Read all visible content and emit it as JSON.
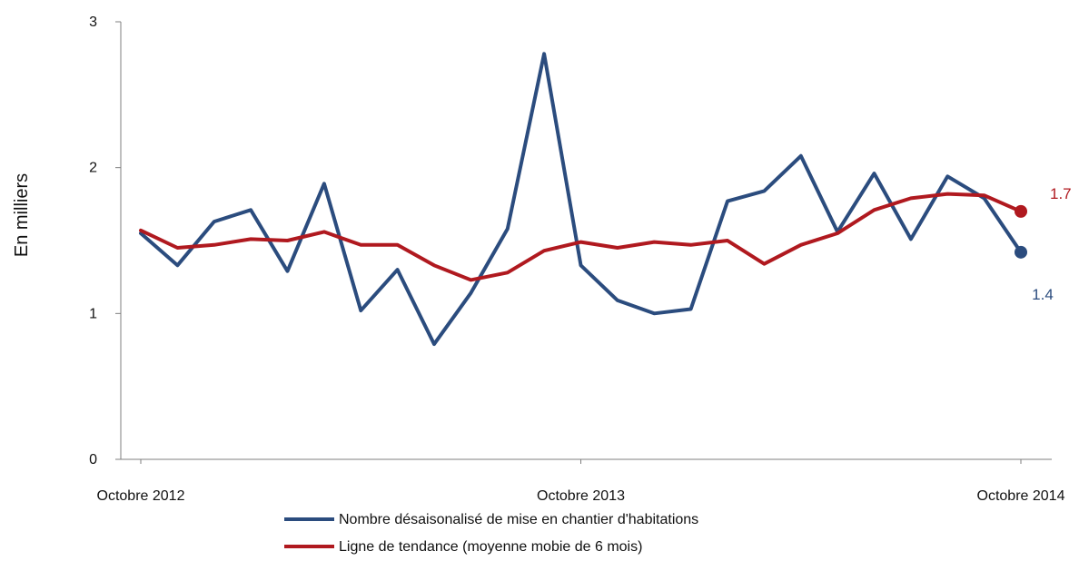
{
  "colors": {
    "series1": "#2b4c7e",
    "series2": "#b0191f",
    "axis": "#7f7f7f"
  },
  "chart_data": {
    "type": "line",
    "ylabel": "En milliers",
    "ylim": [
      0,
      3
    ],
    "yticks": [
      0,
      1,
      2,
      3
    ],
    "xticks": [
      {
        "index": 0,
        "label": "Octobre 2012"
      },
      {
        "index": 12,
        "label": "Octobre 2013"
      },
      {
        "index": 24,
        "label": "Octobre 2014"
      }
    ],
    "grid": false,
    "legend_position": "bottom",
    "series": [
      {
        "name": "Nombre désaisonalisé de mise en chantier d'habitations",
        "values": [
          1.55,
          1.33,
          1.63,
          1.71,
          1.29,
          1.89,
          1.02,
          1.3,
          0.79,
          1.14,
          1.58,
          2.78,
          1.33,
          1.09,
          1.0,
          1.03,
          1.77,
          1.84,
          2.08,
          1.56,
          1.96,
          1.51,
          1.94,
          1.79,
          1.42
        ],
        "end_label": "1.4"
      },
      {
        "name": "Ligne de tendance (moyenne mobie de 6 mois)",
        "values": [
          1.57,
          1.45,
          1.47,
          1.51,
          1.5,
          1.56,
          1.47,
          1.47,
          1.33,
          1.23,
          1.28,
          1.43,
          1.49,
          1.45,
          1.49,
          1.47,
          1.5,
          1.34,
          1.47,
          1.55,
          1.71,
          1.79,
          1.82,
          1.81,
          1.7
        ],
        "end_label": "1.7"
      }
    ]
  }
}
